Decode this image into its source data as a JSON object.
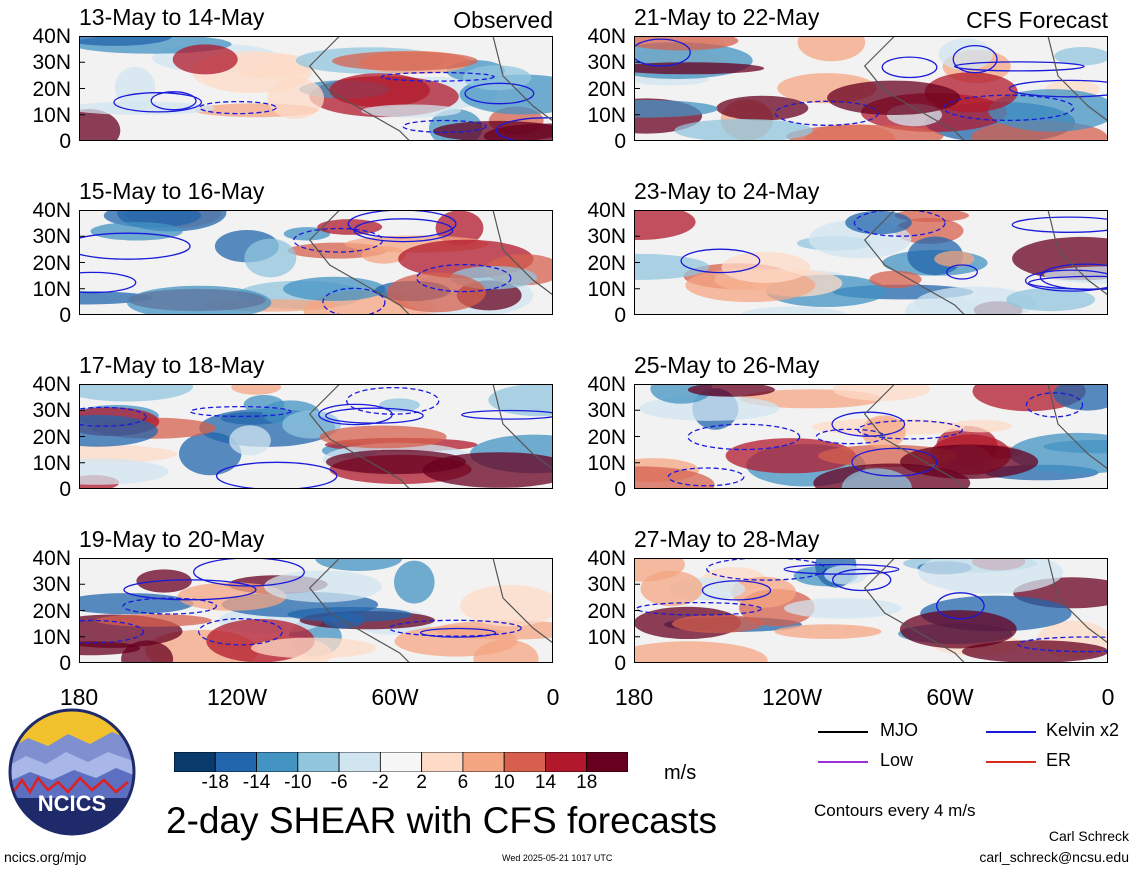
{
  "panels": [
    {
      "title": "13-May to 14-May",
      "source_label": "Observed"
    },
    {
      "title": "21-May to 22-May",
      "source_label": "CFS Forecast"
    },
    {
      "title": "15-May to 16-May",
      "source_label": ""
    },
    {
      "title": "23-May to 24-May",
      "source_label": ""
    },
    {
      "title": "17-May to 18-May",
      "source_label": ""
    },
    {
      "title": "25-May to 26-May",
      "source_label": ""
    },
    {
      "title": "19-May to 20-May",
      "source_label": ""
    },
    {
      "title": "27-May to 28-May",
      "source_label": ""
    }
  ],
  "lat_labels": [
    "40N",
    "30N",
    "20N",
    "10N",
    "0"
  ],
  "lon_labels": [
    "180",
    "120W",
    "60W",
    "0"
  ],
  "colorbar": {
    "ticks": [
      "-18",
      "-14",
      "-10",
      "-6",
      "-2",
      "2",
      "6",
      "10",
      "14",
      "18"
    ],
    "colors": [
      "#083a6b",
      "#2166ac",
      "#4393c3",
      "#92c5de",
      "#d1e5f0",
      "#f7f7f7",
      "#fddbc7",
      "#f4a582",
      "#d6604d",
      "#b2182b",
      "#67001f"
    ],
    "unit": "m/s"
  },
  "legend": {
    "items": [
      {
        "label": "MJO",
        "color": "#000000"
      },
      {
        "label": "Kelvin x2",
        "color": "#1a1adb"
      },
      {
        "label": "Low",
        "color": "#9b30d9"
      },
      {
        "label": "ER",
        "color": "#d92b1a"
      }
    ],
    "contour_note": "Contours every 4 m/s"
  },
  "main_title": "2-day SHEAR with CFS forecasts",
  "logo_text": "NCICS",
  "url": "ncics.org/mjo",
  "timestamp": "Wed 2025-05-21 1017 UTC",
  "author": "Carl Schreck",
  "email": "carl_schreck@ncsu.edu"
}
